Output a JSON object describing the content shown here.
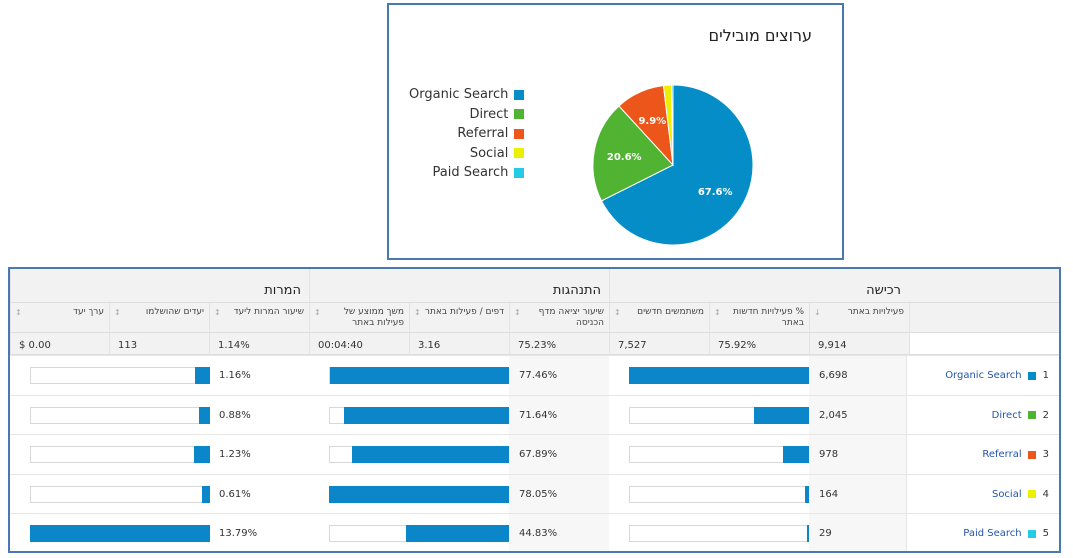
{
  "pie_panel": {
    "title": "ערוצים מובילים"
  },
  "chart_data": [
    {
      "type": "pie",
      "title": "ערוצים מובילים",
      "labels": [
        "Organic Search",
        "Direct",
        "Referral",
        "Social",
        "Paid Search"
      ],
      "values": [
        67.6,
        20.6,
        9.9,
        1.6,
        0.3
      ],
      "value_labels": [
        "67.6%",
        "20.6%",
        "9.9%",
        "",
        ""
      ],
      "colors": [
        "#058dc7",
        "#50b432",
        "#ed561b",
        "#edef00",
        "#24cbe5"
      ],
      "legend_position": "left"
    },
    {
      "type": "table",
      "groups": [
        "רכישה",
        "התנהגות",
        "המרות"
      ],
      "columns": [
        "פעילויות באתר",
        "% פעילויות חדשות באתר",
        "משתמשים חדשים",
        "שיעור יציאה מדף הכניסה",
        "דפים / פעילות באתר",
        "משך ממוצע של פעילות באתר",
        "שיעור המרות ליעד",
        "יעדים שהושלמו",
        "ערך יעד"
      ],
      "totals": [
        "9,914",
        "75.92%",
        "7,527",
        "75.23%",
        "3.16",
        "00:04:40",
        "1.14%",
        "113",
        "$ 0.00"
      ],
      "rows": [
        {
          "num": "1",
          "channel": "Organic Search",
          "sessions": 6698,
          "sessions_text": "6,698",
          "bounce": 77.46,
          "bounce_text": "77.46%",
          "conv": 1.16,
          "conv_text": "1.16%"
        },
        {
          "num": "2",
          "channel": "Direct",
          "sessions": 2045,
          "sessions_text": "2,045",
          "bounce": 71.64,
          "bounce_text": "71.64%",
          "conv": 0.88,
          "conv_text": "0.88%"
        },
        {
          "num": "3",
          "channel": "Referral",
          "sessions": 978,
          "sessions_text": "978",
          "bounce": 67.89,
          "bounce_text": "67.89%",
          "conv": 1.23,
          "conv_text": "1.23%"
        },
        {
          "num": "4",
          "channel": "Social",
          "sessions": 164,
          "sessions_text": "164",
          "bounce": 78.05,
          "bounce_text": "78.05%",
          "conv": 0.61,
          "conv_text": "0.61%"
        },
        {
          "num": "5",
          "channel": "Paid Search",
          "sessions": 29,
          "sessions_text": "29",
          "bounce": 44.83,
          "bounce_text": "44.83%",
          "conv": 13.79,
          "conv_text": "13.79%"
        }
      ],
      "bar_color": "#0b87c9",
      "sort_icon": "down-arrow-icon"
    }
  ]
}
